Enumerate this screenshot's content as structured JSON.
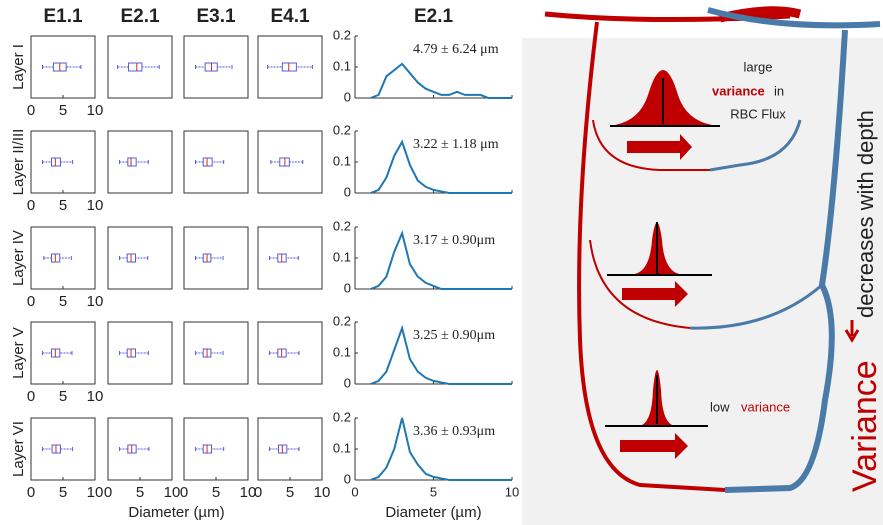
{
  "chart_data": [
    {
      "type": "box",
      "columns": [
        "E1.1",
        "E2.1",
        "E3.1",
        "E4.1"
      ],
      "rows": [
        "Layer I",
        "Layer II/III",
        "Layer IV",
        "Layer V",
        "Layer VI"
      ],
      "xlim": [
        0,
        10
      ],
      "xticks": [
        0,
        5,
        10
      ],
      "xlabel": "Diameter (µm)",
      "color": "#5a5ad6",
      "median_color": "#d62728",
      "boxes": [
        [
          {
            "min": 1.8,
            "q1": 3.5,
            "median": 4.5,
            "q3": 5.5,
            "max": 7.8
          },
          {
            "min": 1.5,
            "q1": 3.2,
            "median": 4.5,
            "q3": 5.3,
            "max": 8
          },
          {
            "min": 1.8,
            "q1": 3.3,
            "median": 4.3,
            "q3": 5.2,
            "max": 7.5
          },
          {
            "min": 1.5,
            "q1": 3.8,
            "median": 4.8,
            "q3": 6,
            "max": 8.5
          }
        ],
        [
          {
            "min": 1.8,
            "q1": 3.2,
            "median": 3.8,
            "q3": 4.6,
            "max": 6.5
          },
          {
            "min": 1.8,
            "q1": 3.1,
            "median": 3.6,
            "q3": 4.4,
            "max": 6.3
          },
          {
            "min": 1.8,
            "q1": 3,
            "median": 3.6,
            "q3": 4.4,
            "max": 6.2
          },
          {
            "min": 2,
            "q1": 3.4,
            "median": 4.2,
            "q3": 4.9,
            "max": 7
          }
        ],
        [
          {
            "min": 2,
            "q1": 3.2,
            "median": 3.8,
            "q3": 4.5,
            "max": 6.3
          },
          {
            "min": 1.8,
            "q1": 3,
            "median": 3.6,
            "q3": 4.3,
            "max": 6.2
          },
          {
            "min": 1.8,
            "q1": 3,
            "median": 3.6,
            "q3": 4.2,
            "max": 6.1
          },
          {
            "min": 1.8,
            "q1": 3.1,
            "median": 3.7,
            "q3": 4.4,
            "max": 6.3
          }
        ],
        [
          {
            "min": 1.8,
            "q1": 3.2,
            "median": 3.8,
            "q3": 4.5,
            "max": 6.4
          },
          {
            "min": 1.8,
            "q1": 3,
            "median": 3.6,
            "q3": 4.3,
            "max": 6.3
          },
          {
            "min": 1.8,
            "q1": 3,
            "median": 3.6,
            "q3": 4.2,
            "max": 6.1
          },
          {
            "min": 1.8,
            "q1": 3.1,
            "median": 3.7,
            "q3": 4.4,
            "max": 6.4
          }
        ],
        [
          {
            "min": 1.8,
            "q1": 3.3,
            "median": 3.9,
            "q3": 4.6,
            "max": 6.5
          },
          {
            "min": 1.8,
            "q1": 3.1,
            "median": 3.7,
            "q3": 4.4,
            "max": 6.4
          },
          {
            "min": 1.8,
            "q1": 3,
            "median": 3.6,
            "q3": 4.3,
            "max": 6.2
          },
          {
            "min": 1.8,
            "q1": 3.2,
            "median": 3.8,
            "q3": 4.5,
            "max": 6.4
          }
        ]
      ]
    },
    {
      "type": "line",
      "title": "E2.1",
      "xlim": [
        0,
        10
      ],
      "xticks": [
        0,
        5,
        10
      ],
      "ylim": [
        0,
        0.2
      ],
      "yticks": [
        0,
        0.1,
        0.2
      ],
      "xlabel": "Diameter (µm)",
      "color": "#1f77b4",
      "x": [
        1,
        1.5,
        2,
        2.5,
        3,
        3.5,
        4,
        4.5,
        5,
        5.5,
        6,
        6.5,
        7,
        7.5,
        8,
        8.5,
        9,
        9.5,
        10
      ],
      "panels": [
        {
          "annotation": "4.79 ± 6.24 μm",
          "values": [
            0,
            0.01,
            0.07,
            0.09,
            0.11,
            0.08,
            0.05,
            0.03,
            0.02,
            0.01,
            0.01,
            0.02,
            0.01,
            0.01,
            0.01,
            0,
            0,
            0,
            0
          ]
        },
        {
          "annotation": "3.22 ± 1.18 μm",
          "values": [
            0,
            0.01,
            0.05,
            0.12,
            0.165,
            0.09,
            0.04,
            0.02,
            0.01,
            0.005,
            0,
            0,
            0,
            0,
            0,
            0,
            0,
            0,
            0
          ]
        },
        {
          "annotation": "3.17 ± 0.90μm",
          "values": [
            0,
            0.01,
            0.04,
            0.12,
            0.18,
            0.08,
            0.04,
            0.02,
            0.01,
            0,
            0,
            0,
            0,
            0,
            0,
            0,
            0,
            0,
            0
          ]
        },
        {
          "annotation": "3.25 ± 0.90μm",
          "values": [
            0,
            0.01,
            0.04,
            0.11,
            0.18,
            0.08,
            0.04,
            0.02,
            0.01,
            0.005,
            0,
            0,
            0,
            0,
            0,
            0,
            0,
            0,
            0
          ]
        },
        {
          "annotation": "3.36 ± 0.93μm",
          "values": [
            0,
            0.01,
            0.04,
            0.1,
            0.2,
            0.09,
            0.05,
            0.02,
            0.01,
            0.005,
            0,
            0,
            0,
            0,
            0,
            0,
            0,
            0,
            0
          ]
        }
      ]
    }
  ],
  "diagram": {
    "high_text_1": "large",
    "high_text_2": "variance",
    "high_text_3": "in",
    "high_text_4": "RBC Flux",
    "low_text_1": "low",
    "low_text_2": "variance",
    "axis_text_1": "Variance",
    "axis_text_2": "decreases with depth"
  }
}
